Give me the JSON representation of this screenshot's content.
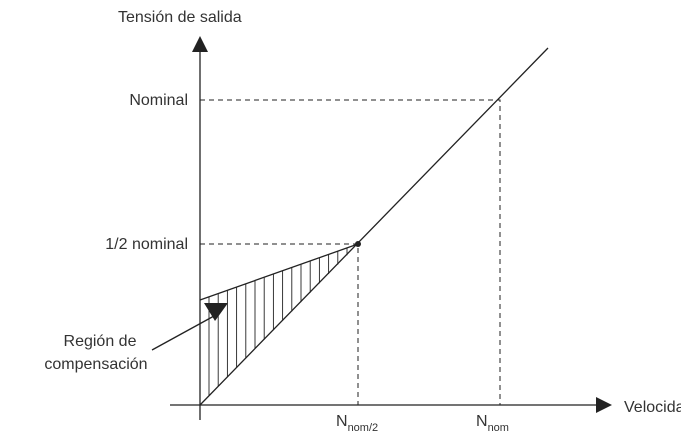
{
  "axes": {
    "y_label": "Tensión de salida",
    "x_label": "Velocidad"
  },
  "levels": {
    "nominal": "Nominal",
    "half": "1/2 nominal"
  },
  "region": {
    "line1": "Región de",
    "line2": "compensación"
  },
  "speeds": [
    {
      "symbol": "N",
      "subscript": "nom/2"
    },
    {
      "symbol": "N",
      "subscript": "nom"
    }
  ]
}
